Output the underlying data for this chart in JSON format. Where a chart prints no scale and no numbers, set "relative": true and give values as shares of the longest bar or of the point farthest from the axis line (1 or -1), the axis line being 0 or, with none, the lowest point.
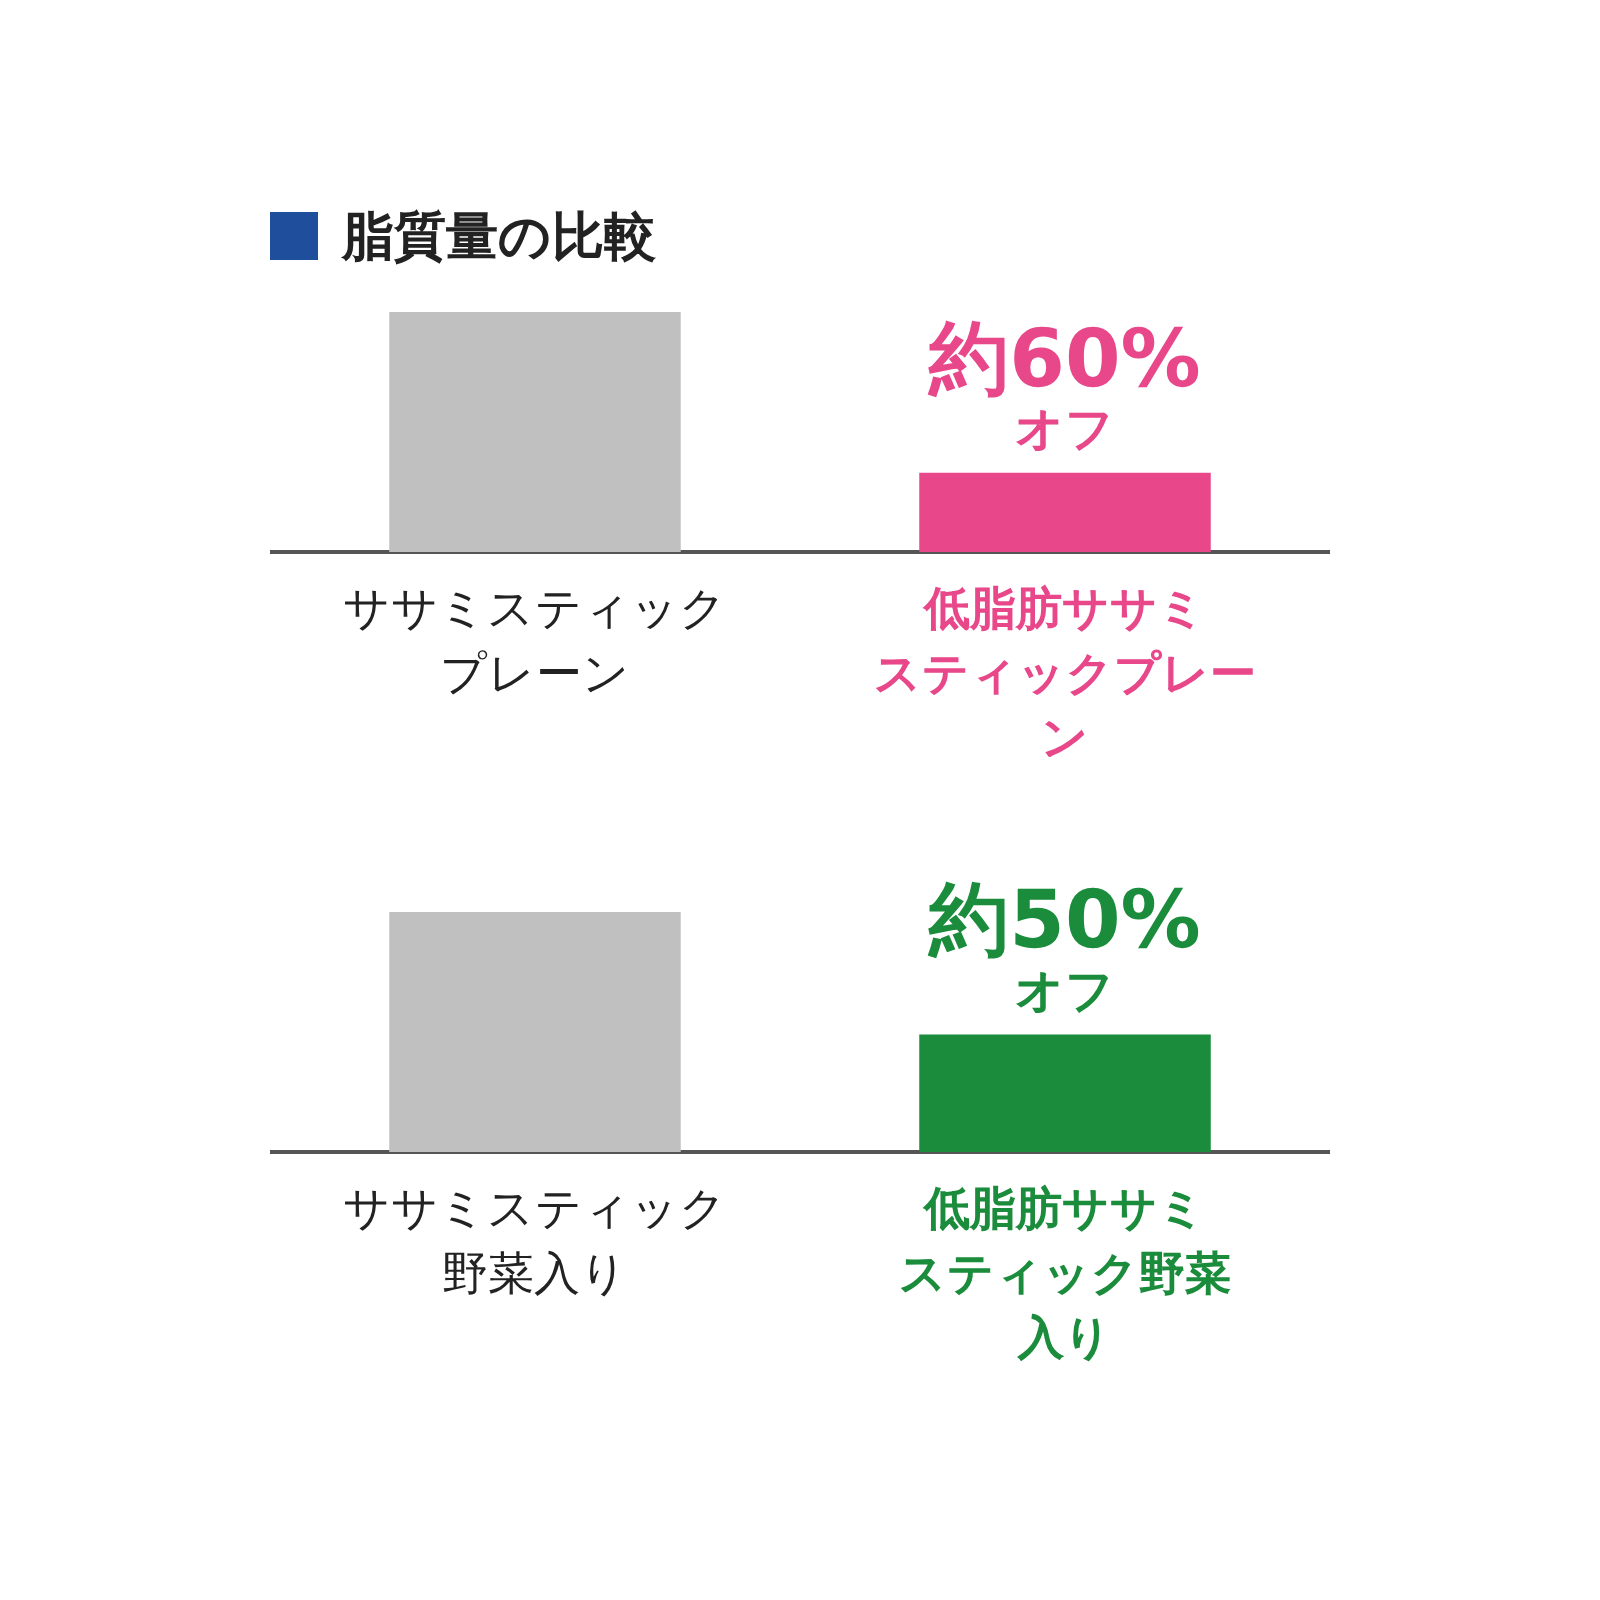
{
  "chart_data": [
    {
      "type": "bar",
      "title": "脂質量の比較",
      "relative": true,
      "categories": [
        "ササミスティックプレーン",
        "低脂肪ササミスティックプレーン"
      ],
      "colors": [
        "#c0c0c0",
        "#e8478a"
      ],
      "values": [
        1,
        0.33
      ],
      "annotations": [
        {
          "text": "約60%オフ",
          "x": "低脂肪ササミスティックプレーン",
          "y": 0.33
        }
      ],
      "grid": false,
      "legend": false
    },
    {
      "type": "bar",
      "relative": true,
      "categories": [
        "ササミスティック野菜入り",
        "低脂肪ササミスティック野菜入り"
      ],
      "colors": [
        "#c0c0c0",
        "#1a8c3c"
      ],
      "values": [
        1,
        0.49
      ],
      "annotations": [
        {
          "text": "約50%オフ",
          "x": "低脂肪ササミスティック野菜入り",
          "y": 0.49
        }
      ],
      "grid": false,
      "legend": false
    }
  ]
}
